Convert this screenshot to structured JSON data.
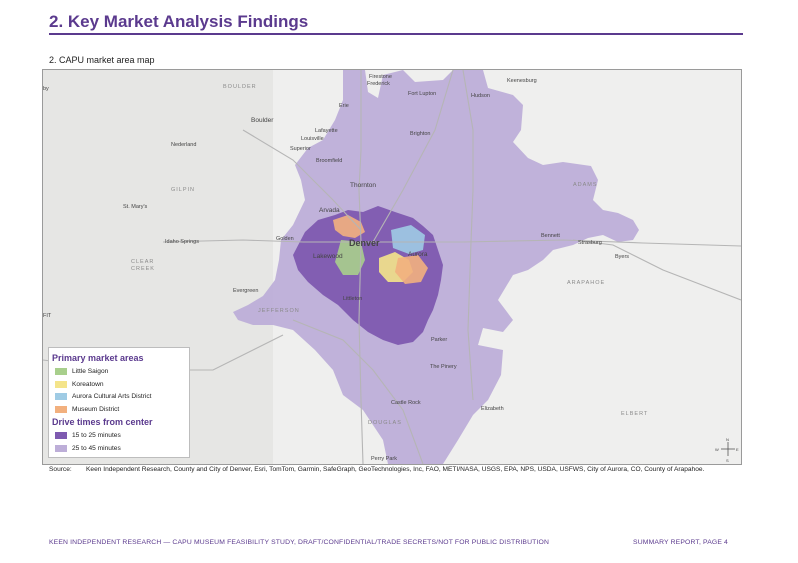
{
  "header": {
    "title": "2. Key Market Analysis Findings",
    "subtitle": "2. CAPU market area map"
  },
  "map": {
    "city_labels": [
      {
        "key": "boulder_region",
        "text": "BOULDER"
      },
      {
        "key": "firestone",
        "text": "Firestone"
      },
      {
        "key": "frederick",
        "text": "Frederick"
      },
      {
        "key": "keenesburg",
        "text": "Keenesburg"
      },
      {
        "key": "fort_lupton",
        "text": "Fort Lupton"
      },
      {
        "key": "hudson",
        "text": "Hudson"
      },
      {
        "key": "erie",
        "text": "Erie"
      },
      {
        "key": "boulder",
        "text": "Boulder"
      },
      {
        "key": "louisville",
        "text": "Louisville"
      },
      {
        "key": "lafayette",
        "text": "Lafayette"
      },
      {
        "key": "brighton",
        "text": "Brighton"
      },
      {
        "key": "nederland",
        "text": "Nederland"
      },
      {
        "key": "superior",
        "text": "Superior"
      },
      {
        "key": "broomfield",
        "text": "Broomfield"
      },
      {
        "key": "gilpin",
        "text": "GILPIN"
      },
      {
        "key": "thornton",
        "text": "Thornton"
      },
      {
        "key": "adams",
        "text": "ADAMS"
      },
      {
        "key": "st_marys",
        "text": "St. Mary's"
      },
      {
        "key": "arvada",
        "text": "Arvada"
      },
      {
        "key": "golden",
        "text": "Golden"
      },
      {
        "key": "idaho_springs",
        "text": "Idaho Springs"
      },
      {
        "key": "denver",
        "text": "Denver"
      },
      {
        "key": "bennett",
        "text": "Bennett"
      },
      {
        "key": "strasburg",
        "text": "Strasburg"
      },
      {
        "key": "byers",
        "text": "Byers"
      },
      {
        "key": "clear",
        "text": "CLEAR"
      },
      {
        "key": "creek",
        "text": "CREEK"
      },
      {
        "key": "lakewood",
        "text": "Lakewood"
      },
      {
        "key": "aurora",
        "text": "Aurora"
      },
      {
        "key": "arapahoe",
        "text": "ARAPAHOE"
      },
      {
        "key": "evergreen",
        "text": "Evergreen"
      },
      {
        "key": "littleton",
        "text": "Littleton"
      },
      {
        "key": "jefferson",
        "text": "JEFFERSON"
      },
      {
        "key": "fit",
        "text": "FIT"
      },
      {
        "key": "parker",
        "text": "Parker"
      },
      {
        "key": "the_pinery",
        "text": "The Pinery"
      },
      {
        "key": "castle_rock",
        "text": "Castle Rock"
      },
      {
        "key": "elizabeth",
        "text": "Elizabeth"
      },
      {
        "key": "elbert",
        "text": "ELBERT"
      },
      {
        "key": "douglas",
        "text": "DOUGLAS"
      },
      {
        "key": "perry_park",
        "text": "Perry Park"
      },
      {
        "key": "by",
        "text": "by"
      }
    ],
    "compass": {
      "n": "N",
      "s": "S",
      "e": "E",
      "w": "W"
    },
    "colors": {
      "drive_15_25": "#7e5ab0",
      "drive_25_45": "#bdaed8",
      "little_saigon": "#a8cf8c",
      "koreatown": "#f4e48a",
      "aurora_cultural": "#9fcbe4",
      "museum_district": "#f2b07e"
    }
  },
  "legend": {
    "primary_heading": "Primary market areas",
    "primary_items": [
      "Little Saigon",
      "Koreatown",
      "Aurora Cultural Arts District",
      "Museum District"
    ],
    "drive_heading": "Drive times from center",
    "drive_items": [
      "15 to 25 minutes",
      "25 to 45 minutes"
    ]
  },
  "source": {
    "label": "Source:",
    "text": "Keen Independent Research, County and City of Denver, Esri, TomTom, Garmin, SafeGraph, GeoTechnologies, Inc, FAO, METI/NASA, USGS, EPA, NPS, USDA, USFWS, City of Aurora, CO, County of Arapahoe."
  },
  "footer": {
    "left": "KEEN INDEPENDENT RESEARCH — CAPU MUSEUM FEASIBILITY STUDY, DRAFT/CONFIDENTIAL/TRADE SECRETS/NOT FOR PUBLIC DISTRIBUTION",
    "right": "SUMMARY REPORT, PAGE 4"
  }
}
